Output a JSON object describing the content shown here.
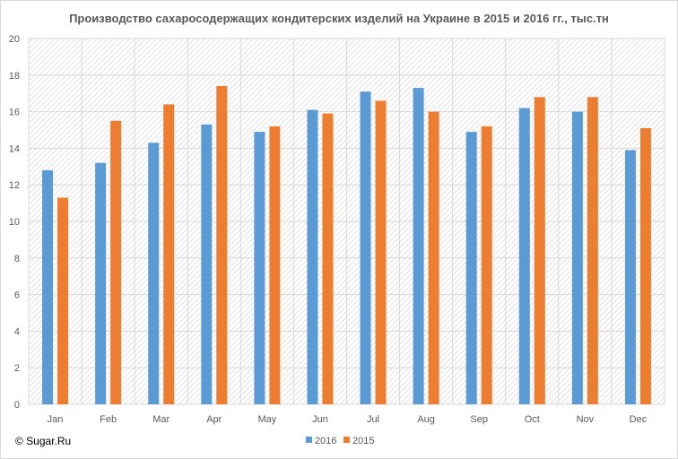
{
  "chart_data": {
    "type": "bar",
    "title": "Производство сахаросодержащих кондитерских изделий на Украине в 2015 и 2016 гг., тыс.тн",
    "categories": [
      "Jan",
      "Feb",
      "Mar",
      "Apr",
      "May",
      "Jun",
      "Jul",
      "Aug",
      "Sep",
      "Oct",
      "Nov",
      "Dec"
    ],
    "series": [
      {
        "name": "2016",
        "color": "#5B9BD5",
        "values": [
          12.8,
          13.2,
          14.3,
          15.3,
          14.9,
          16.1,
          17.1,
          17.3,
          14.9,
          16.2,
          16.0,
          13.9
        ]
      },
      {
        "name": "2015",
        "color": "#ED7D31",
        "values": [
          11.3,
          15.5,
          16.4,
          17.4,
          15.2,
          15.9,
          16.6,
          16.0,
          15.2,
          16.8,
          16.8,
          15.1
        ]
      }
    ],
    "ylim": [
      0,
      20
    ],
    "yticks": [
      0,
      2,
      4,
      6,
      8,
      10,
      12,
      14,
      16,
      18,
      20
    ],
    "grid": true,
    "legend_position": "bottom"
  },
  "copyright": "© Sugar.Ru"
}
